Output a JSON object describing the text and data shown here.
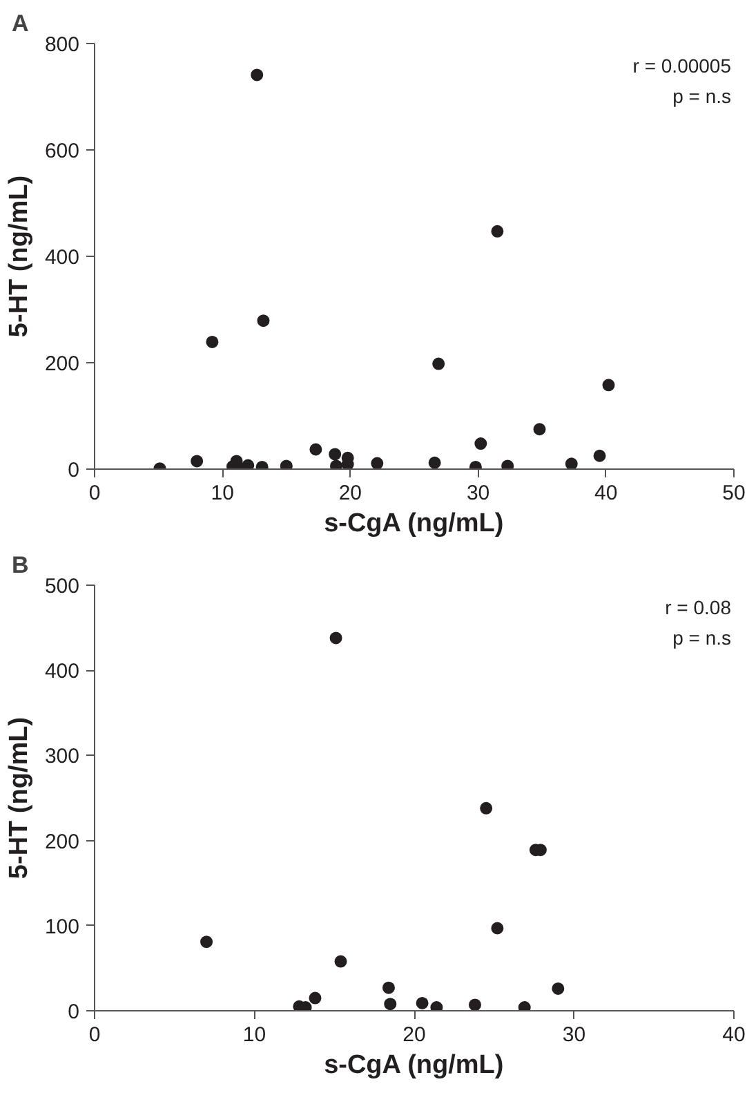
{
  "chart_data": [
    {
      "type": "scatter",
      "title": "A",
      "xlabel": "s-CgA (ng/mL)",
      "ylabel": "5-HT (ng/mL)",
      "annotations": [
        "r = 0.00005",
        "p = n.s"
      ],
      "marker": "circle",
      "grid": false,
      "xlim": [
        0,
        50
      ],
      "xticks": [
        0,
        10,
        20,
        30,
        40,
        50
      ],
      "ylim": [
        0,
        800
      ],
      "yticks": [
        0,
        200,
        400,
        600,
        800
      ],
      "series": [
        {
          "color": "#231f20",
          "x": [
            5.1,
            8.0,
            10.8,
            11.1,
            12.0,
            13.1,
            12.7,
            13.2,
            9.2,
            15.0,
            17.3,
            18.8,
            18.9,
            19.8,
            19.8,
            22.1,
            26.6,
            26.9,
            29.8,
            30.2,
            31.5,
            32.3,
            34.8,
            37.3,
            39.5,
            40.2,
            11.5
          ],
          "values": [
            1,
            15,
            5,
            15,
            7,
            4,
            741,
            279,
            239,
            6,
            37,
            28,
            6,
            21,
            9,
            11,
            12,
            198,
            4,
            48,
            447,
            6,
            75,
            10,
            25,
            158,
            0
          ]
        }
      ]
    },
    {
      "type": "scatter",
      "title": "B",
      "xlabel": "s-CgA (ng/mL)",
      "ylabel": "5-HT (ng/mL)",
      "annotations": [
        "r = 0.08",
        "p = n.s"
      ],
      "marker": "circle",
      "grid": false,
      "xlim": [
        0,
        40
      ],
      "xticks": [
        0,
        10,
        20,
        30,
        40
      ],
      "ylim": [
        0,
        500
      ],
      "yticks": [
        0,
        100,
        200,
        300,
        400,
        500
      ],
      "series": [
        {
          "color": "#231f20",
          "x": [
            7.0,
            15.1,
            15.4,
            12.8,
            13.2,
            13.8,
            18.4,
            18.5,
            20.5,
            21.4,
            23.8,
            24.5,
            25.2,
            26.9,
            27.6,
            27.9,
            29.0
          ],
          "values": [
            81,
            438,
            58,
            5,
            4,
            15,
            27,
            8,
            9,
            4,
            7,
            238,
            97,
            4,
            189,
            189,
            26
          ]
        }
      ]
    }
  ]
}
